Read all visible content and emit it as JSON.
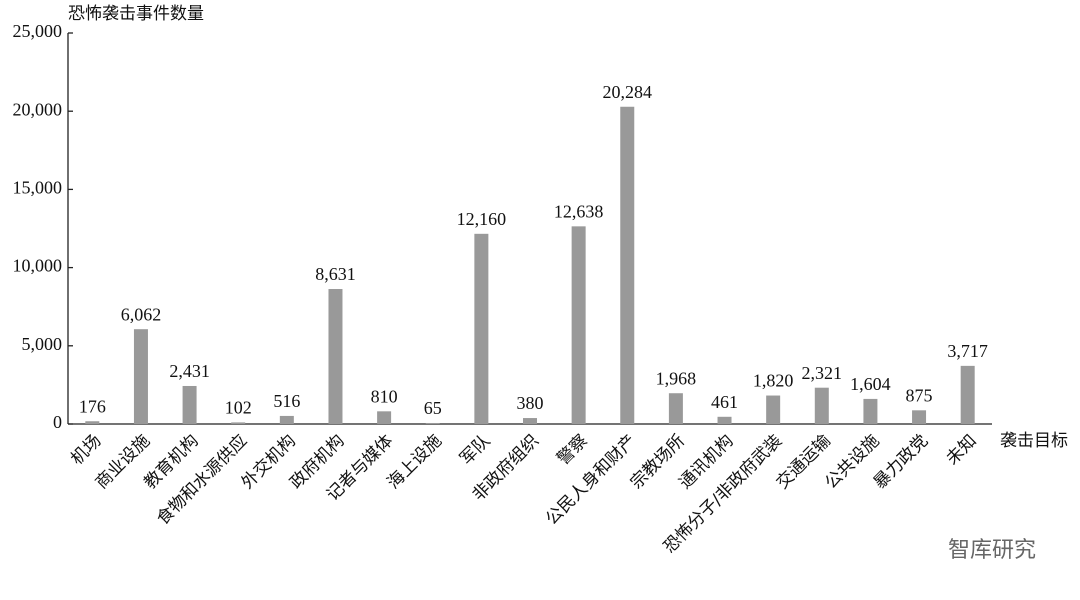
{
  "chart_data": {
    "type": "bar",
    "y_axis_label": "恐怖袭击事件数量",
    "x_axis_label": "袭击目标",
    "watermark": "智库研究",
    "categories": [
      "机场",
      "商业设施",
      "教育机构",
      "食物和水源供应",
      "外交机构",
      "政府机构",
      "记者与媒体",
      "海上设施",
      "军队",
      "非政府组织",
      "警察",
      "公民人身和财产",
      "宗教场所",
      "通讯机构",
      "恐怖分子/非政府武装",
      "交通运输",
      "公共设施",
      "暴力政党",
      "未知"
    ],
    "values": [
      176,
      6062,
      2431,
      102,
      516,
      8631,
      810,
      65,
      12160,
      380,
      12638,
      20284,
      1968,
      461,
      1820,
      2321,
      1604,
      875,
      3717
    ],
    "value_labels": [
      "176",
      "6,062",
      "2,431",
      "102",
      "516",
      "8,631",
      "810",
      "65",
      "12,160",
      "380",
      "12,638",
      "20,284",
      "1,968",
      "461",
      "1,820",
      "2,321",
      "1,604",
      "875",
      "3,717"
    ],
    "color": "#999999",
    "ylim": [
      0,
      25000
    ],
    "yticks": [
      0,
      {
        "value": 5000,
        "label": "5,000"
      },
      {
        "value": 10000,
        "label": "10,000"
      },
      {
        "value": 15000,
        "label": "15,000"
      },
      {
        "value": 20000,
        "label": "20,000"
      },
      {
        "value": 25000,
        "label": "25,000"
      }
    ],
    "grid": false
  }
}
